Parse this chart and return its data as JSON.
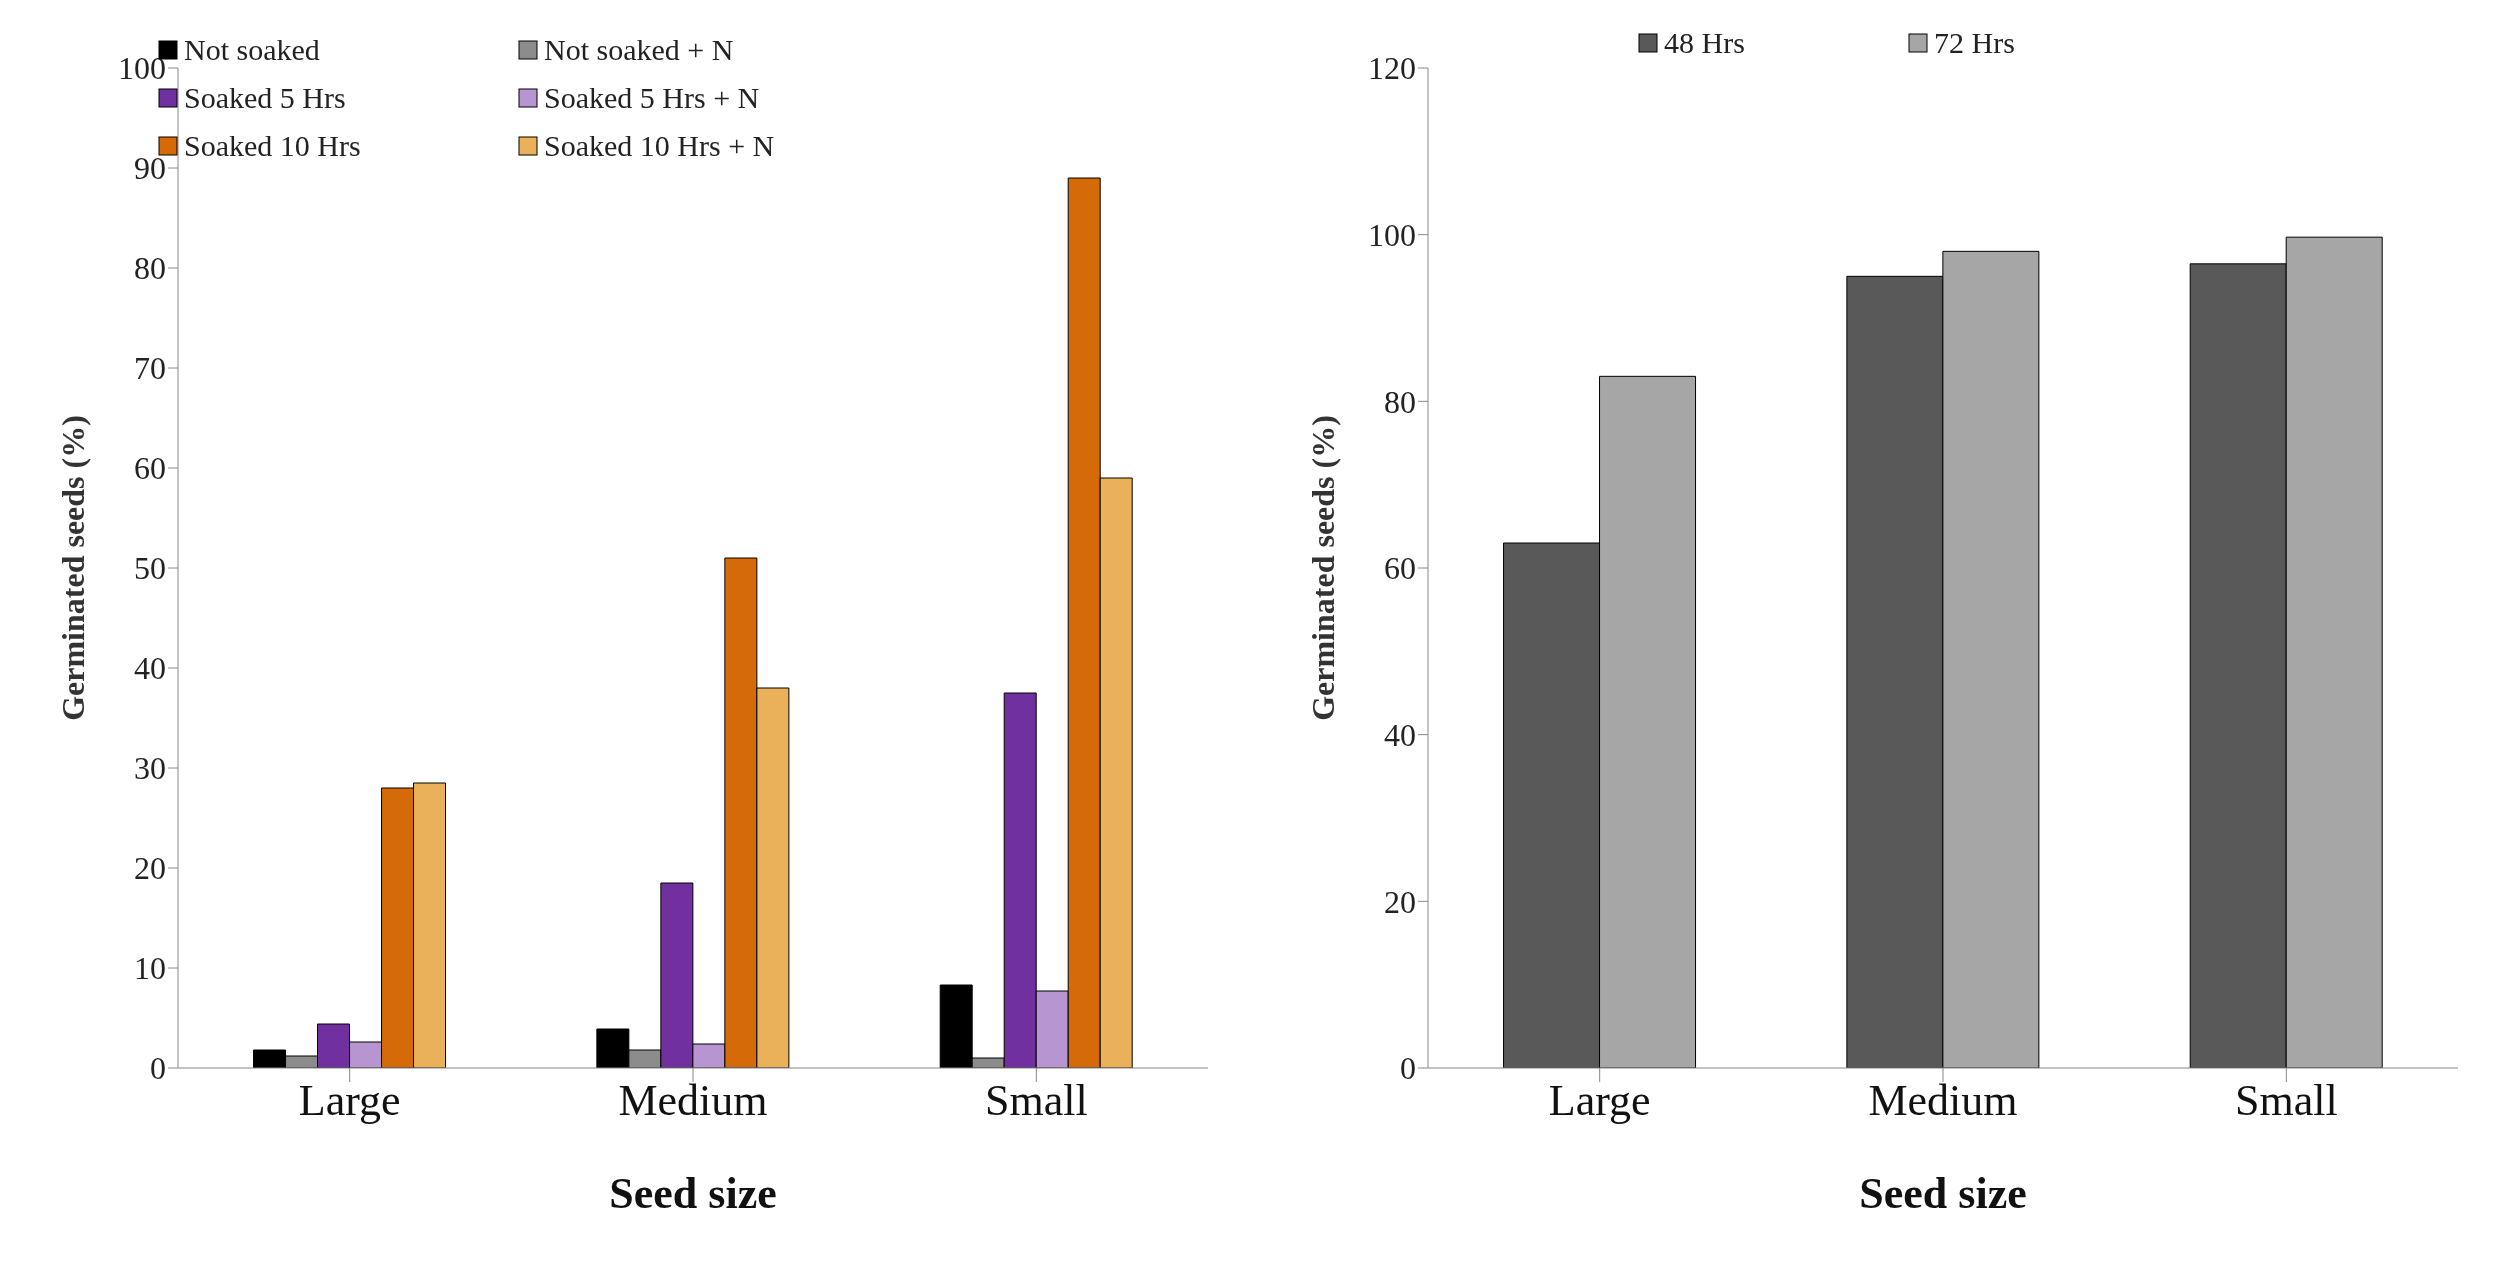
{
  "chart_data": [
    {
      "type": "bar",
      "xlabel": "Seed size",
      "ylabel": "Germinated seeds  (%)",
      "categories": [
        "Large",
        "Medium",
        "Small"
      ],
      "ylim": [
        0,
        100
      ],
      "yticks": [
        0,
        10,
        20,
        30,
        40,
        50,
        60,
        70,
        80,
        90,
        100
      ],
      "legend": "top left",
      "series": [
        {
          "name": "Not soaked",
          "color": "#000000",
          "values": [
            1.8,
            3.9,
            8.3
          ]
        },
        {
          "name": "Not soaked + N",
          "color": "#8c8c8c",
          "values": [
            1.2,
            1.8,
            1.0
          ]
        },
        {
          "name": "Soaked 5 Hrs",
          "color": "#7030a0",
          "values": [
            4.4,
            18.5,
            37.5
          ]
        },
        {
          "name": "Soaked 5 Hrs + N",
          "color": "#b795d0",
          "values": [
            2.6,
            2.4,
            7.7
          ]
        },
        {
          "name": "Soaked 10 Hrs",
          "color": "#d46b08",
          "values": [
            28,
            51,
            89
          ]
        },
        {
          "name": "Soaked 10 Hrs + N",
          "color": "#eab05a",
          "values": [
            28.5,
            38,
            59
          ]
        }
      ]
    },
    {
      "type": "bar",
      "xlabel": "Seed size",
      "ylabel": "Germinated seeds  (%)",
      "categories": [
        "Large",
        "Medium",
        "Small"
      ],
      "ylim": [
        0,
        120
      ],
      "yticks": [
        0,
        20,
        40,
        60,
        80,
        100,
        120
      ],
      "legend": "top",
      "series": [
        {
          "name": "48 Hrs",
          "color": "#595959",
          "values": [
            63,
            95,
            96.5
          ]
        },
        {
          "name": "72 Hrs",
          "color": "#a6a6a6",
          "values": [
            83,
            98,
            99.7
          ]
        }
      ]
    }
  ]
}
